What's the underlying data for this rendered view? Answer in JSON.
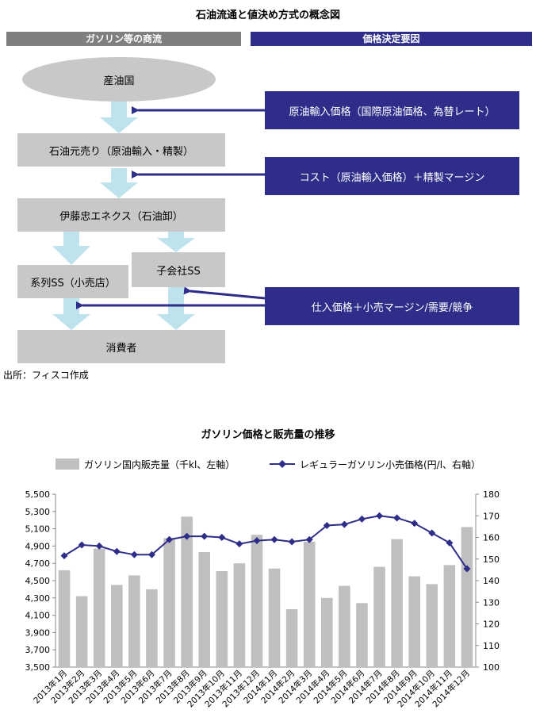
{
  "diagram": {
    "title": "石油流通と値決め方式の概念図",
    "left_header": "ガソリン等の商流",
    "right_header": "価格決定要因",
    "nodes": {
      "producer": "産油国",
      "refiner": "石油元売り（原油輸入・精製）",
      "wholesaler": "伊藤忠エネクス（石油卸）",
      "subsidiary": "子会社SS",
      "affiliate": "系列SS（小売店）",
      "consumer": "消費者"
    },
    "factors": {
      "crude": "原油輸入価格（国際原油価格、為替レート）",
      "cost": "コスト（原油輸入価格）＋精製マージン",
      "retail": "仕入価格＋小売マージン/需要/競争"
    },
    "source": "出所：フィスコ作成",
    "colors": {
      "navy": "#2e2e8a",
      "gray": "#c8c8c8",
      "cyan_arrow": "#bfe3ec"
    }
  },
  "chart_data": {
    "type": "bar",
    "title": "ガソリン価格と販売量の推移",
    "categories": [
      "2013年1月",
      "2013年2月",
      "2013年3月",
      "2013年4月",
      "2013年5月",
      "2013年6月",
      "2013年7月",
      "2013年8月",
      "2013年9月",
      "2013年10月",
      "2013年11月",
      "2013年12月",
      "2014年1月",
      "2014年2月",
      "2014年3月",
      "2014年4月",
      "2014年5月",
      "2014年6月",
      "2014年7月",
      "2014年8月",
      "2014年9月",
      "2014年10月",
      "2014年11月",
      "2014年12月"
    ],
    "series": [
      {
        "name": "ガソリン国内販売量（千kl、左軸）",
        "type": "bar",
        "axis": "left",
        "color": "#bfbfbf",
        "values": [
          4620,
          4320,
          4870,
          4450,
          4560,
          4400,
          4990,
          5240,
          4830,
          4610,
          4700,
          5030,
          4640,
          4170,
          4950,
          4300,
          4440,
          4240,
          4660,
          4980,
          4550,
          4460,
          4680,
          5120
        ]
      },
      {
        "name": "レギュラーガソリン小売価格(円/l、右軸）",
        "type": "line",
        "axis": "right",
        "color": "#2e2e8a",
        "values": [
          151.5,
          156.5,
          156,
          153.5,
          152,
          152,
          159,
          160.5,
          160.5,
          160,
          157,
          158.5,
          159,
          158,
          159,
          165.5,
          166,
          168.5,
          170,
          169,
          166.5,
          162,
          157.5,
          145.5
        ]
      }
    ],
    "ylim_left": [
      3500,
      5500
    ],
    "ylim_right": [
      100,
      180
    ],
    "yticks_left": [
      "3,500",
      "3,700",
      "3,900",
      "4,100",
      "4,300",
      "4,500",
      "4,700",
      "4,900",
      "5,100",
      "5,300",
      "5,500"
    ],
    "yticks_right": [
      "100",
      "110",
      "120",
      "130",
      "140",
      "150",
      "160",
      "170",
      "180"
    ],
    "legend_position": "top",
    "grid": false
  }
}
